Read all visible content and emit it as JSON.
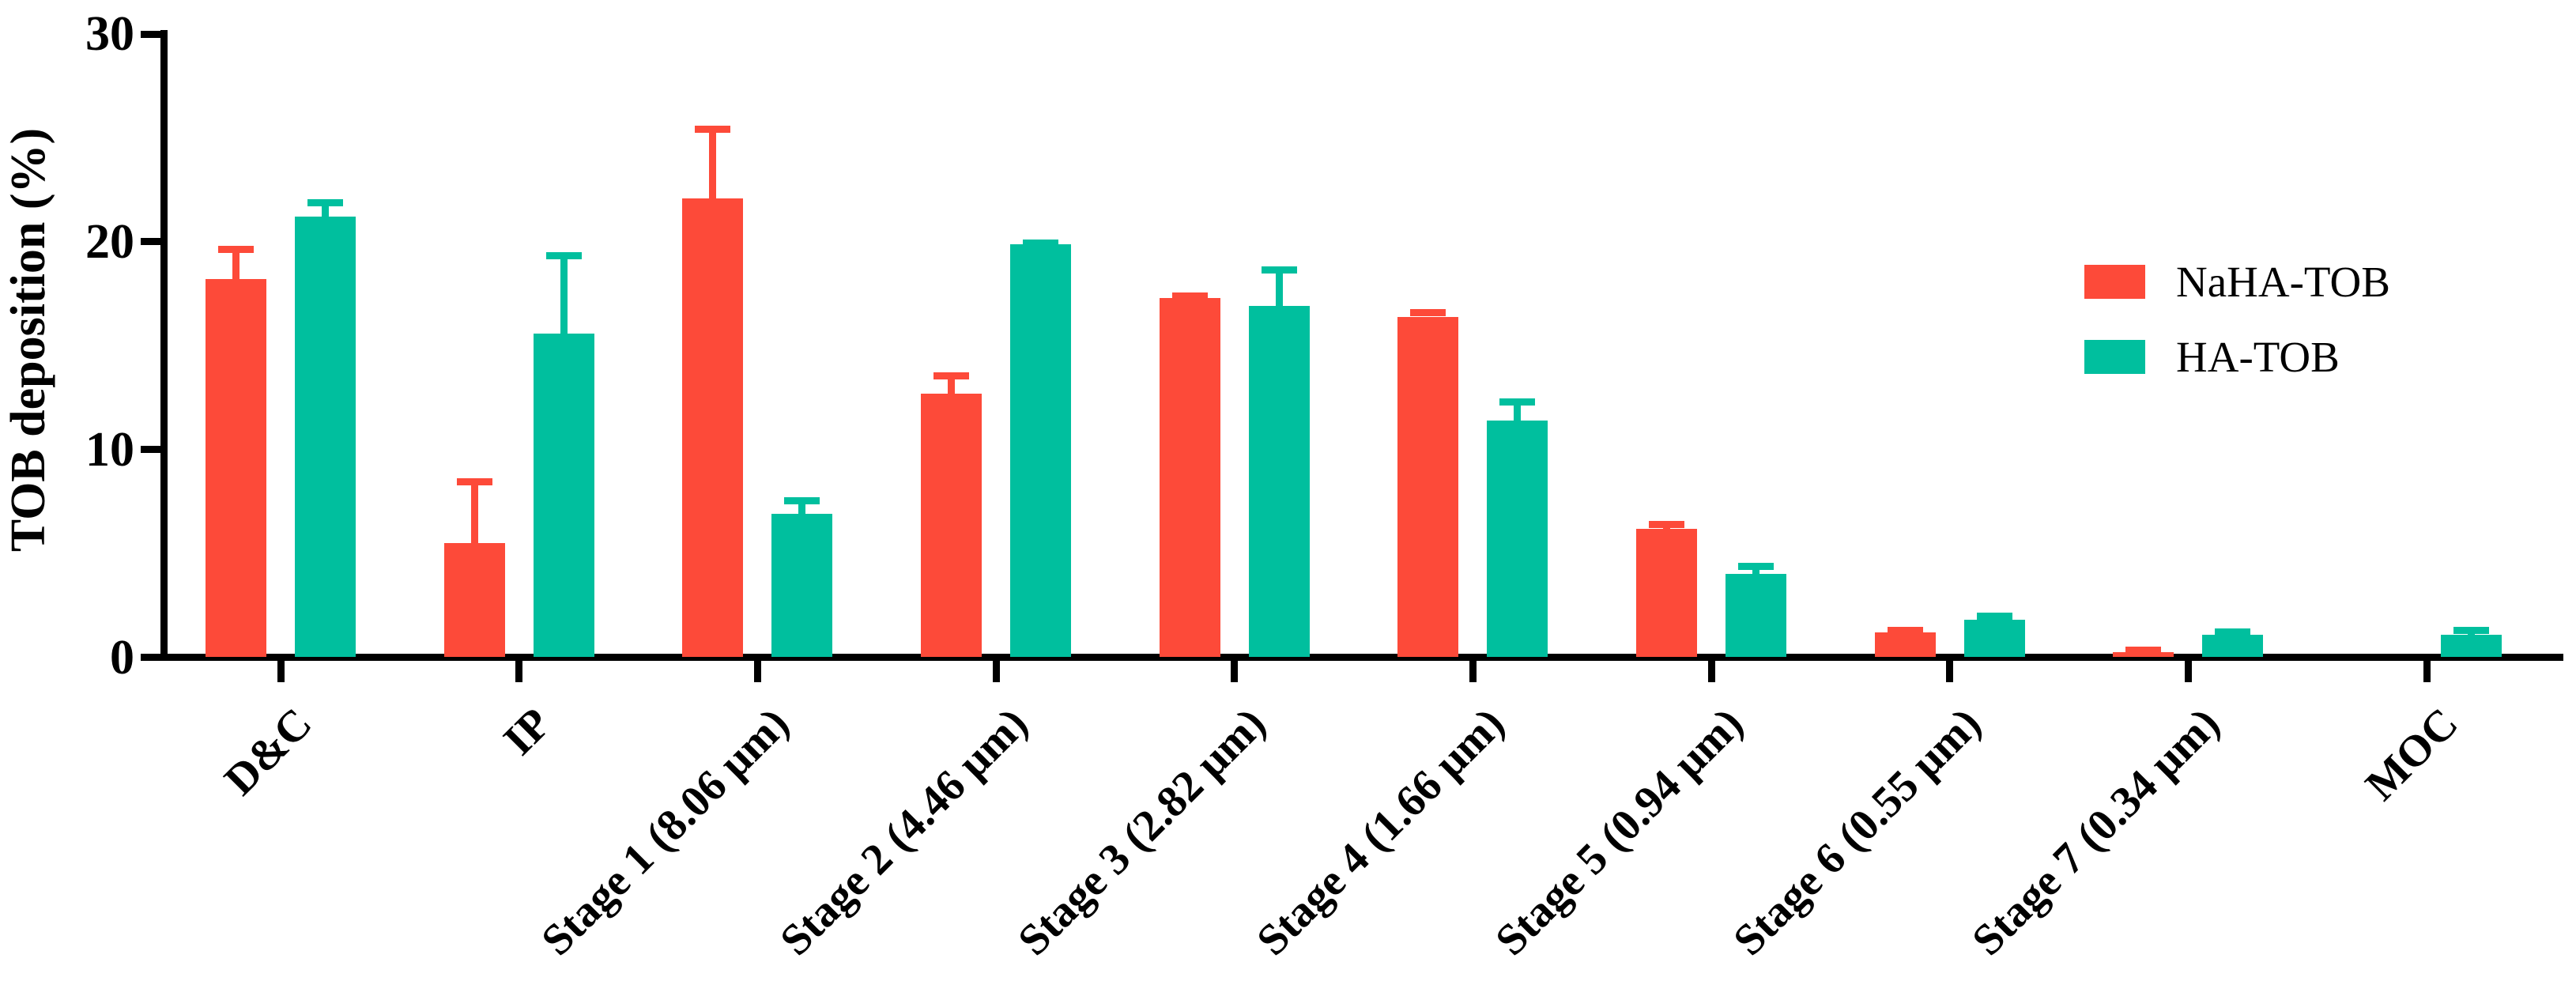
{
  "figure": {
    "background": "#ffffff",
    "axis_color": "#000000"
  },
  "chart_data": {
    "type": "bar",
    "title": "",
    "xlabel": "",
    "ylabel": "TOB deposition (%)",
    "ylim": [
      0,
      30
    ],
    "yticks": [
      0,
      10,
      20,
      30
    ],
    "grid": false,
    "bar_grouping": "grouped-pairs",
    "error_bars": "upper-only-with-cap",
    "legend_position": "upper-right",
    "categories": [
      "D&C",
      "IP",
      "Stage 1 (8.06 μm)",
      "Stage 2 (4.46 μm)",
      "Stage 3 (2.82 μm)",
      "Stage 4 (1.66 μm)",
      "Stage 5 (0.94 μm)",
      "Stage 6 (0.55 μm)",
      "Stage 7 (0.34 μm)",
      "MOC"
    ],
    "series": [
      {
        "name": "NaHA-TOB",
        "color": "#FD4A39",
        "values": [
          18.2,
          5.5,
          22.1,
          12.7,
          17.3,
          16.4,
          6.2,
          1.2,
          0.25,
          0
        ],
        "errors_plus": [
          1.6,
          3.1,
          3.5,
          1.0,
          0.25,
          0.35,
          0.35,
          0.25,
          0.25,
          0
        ]
      },
      {
        "name": "HA-TOB",
        "color": "#00BF9E",
        "values": [
          21.2,
          15.6,
          6.9,
          19.9,
          16.9,
          11.4,
          4.0,
          1.8,
          1.1,
          1.1
        ],
        "errors_plus": [
          0.85,
          3.9,
          0.8,
          0.2,
          1.9,
          1.05,
          0.55,
          0.35,
          0.3,
          0.35
        ]
      }
    ]
  },
  "legend": {
    "items": [
      {
        "label": "NaHA-TOB",
        "color": "#FD4A39"
      },
      {
        "label": "HA-TOB",
        "color": "#00BF9E"
      }
    ]
  }
}
